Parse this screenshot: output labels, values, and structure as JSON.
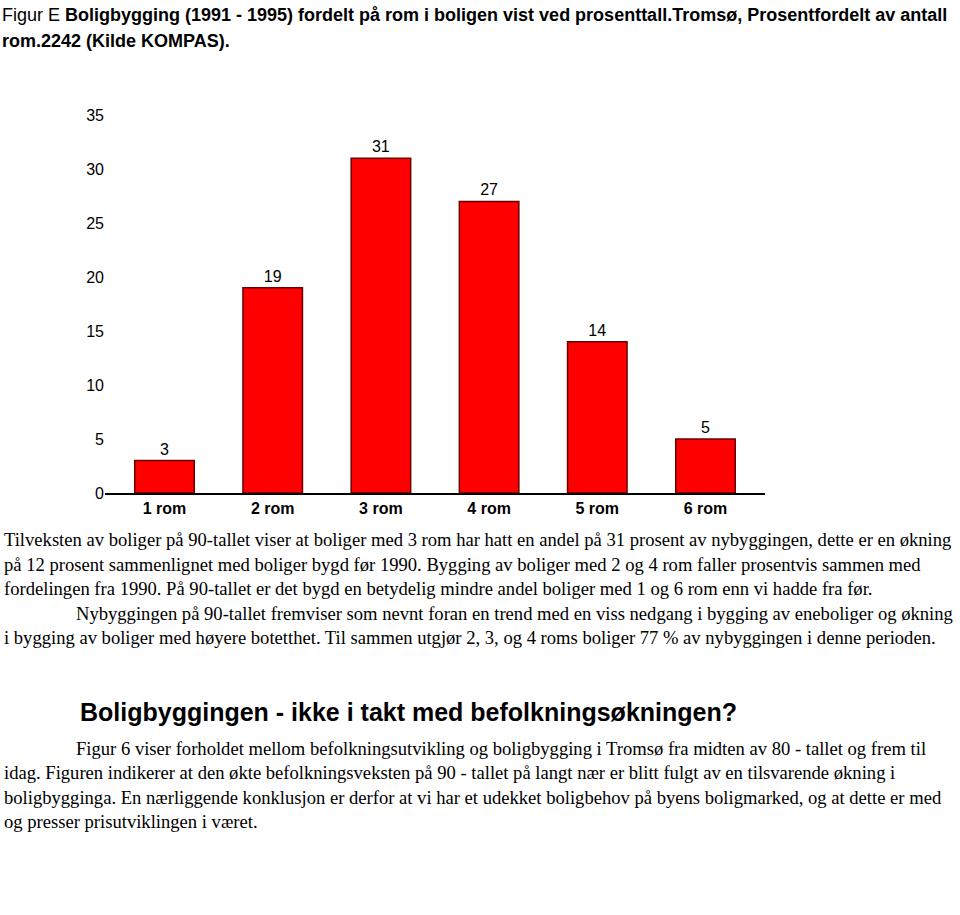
{
  "caption": {
    "label": "Figur E",
    "text": "Boligbygging (1991 - 1995) fordelt på rom i boligen vist ved prosenttall.Tromsø, Prosentfordelt av antall rom.2242 (Kilde KOMPAS)."
  },
  "chart_data": {
    "type": "bar",
    "categories": [
      "1 rom",
      "2 rom",
      "3 rom",
      "4 rom",
      "5 rom",
      "6 rom"
    ],
    "values": [
      3,
      19,
      31,
      27,
      14,
      5
    ],
    "color": "#ff0000",
    "ylim": [
      0,
      35
    ],
    "yticks": [
      0,
      5,
      10,
      15,
      20,
      25,
      30,
      35
    ],
    "grid": false,
    "data_labels": true
  },
  "paragraphs": [
    "Tilveksten av boliger på 90-tallet viser at boliger med 3 rom har hatt en andel på 31 prosent av nybyggingen, dette er en økning på 12 prosent sammenlignet med boliger bygd før 1990. Bygging av boliger med 2 og 4 rom faller prosentvis sammen med fordelingen fra 1990. På 90-tallet er det bygd en betydelig mindre andel boliger med 1 og 6 rom enn vi hadde fra før.",
    "Nybyggingen på 90-tallet fremviser som nevnt foran en trend med en viss nedgang i bygging av eneboliger og økning i bygging av boliger med høyere botetthet. Til sammen utgjør 2, 3, og 4 roms boliger 77 % av nybyggingen i denne perioden."
  ],
  "heading": "Boligbyggingen - ikke i takt med befolkningsøkningen?",
  "paragraphs_after_heading": [
    "Figur 6 viser forholdet mellom befolkningsutvikling og boligbygging i Tromsø fra midten av 80 - tallet og frem til idag. Figuren indikerer at den økte befolkningsveksten på 90 - tallet på langt nær er blitt fulgt av en tilsvarende økning i boligbygginga. En nærliggende konklusjon er derfor at vi har et udekket boligbehov på byens boligmarked, og at dette er med og presser prisutviklingen i været."
  ]
}
